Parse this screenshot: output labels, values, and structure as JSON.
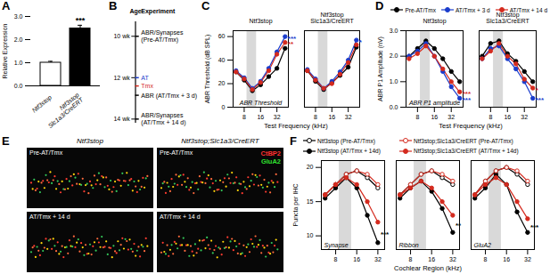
{
  "chart_data": [
    {
      "panel": "A",
      "type": "bar",
      "categories": [
        "Ntf3stop",
        "Ntf3stop\nSlc1a3/CreERT"
      ],
      "values": [
        1.0,
        2.48
      ],
      "errors": [
        0.06,
        0.14
      ],
      "significance": [
        null,
        "***"
      ],
      "colors": [
        "#ffffff",
        "#000000"
      ],
      "ylabel": "Relative Expression",
      "ylim": [
        0,
        3
      ],
      "yticks": [
        0,
        1,
        2,
        3
      ]
    },
    {
      "panel": "C",
      "type": "line",
      "log": "x",
      "marker": "circle",
      "xlabel": "Test Frequency (kHz)",
      "ylabel": "ABR Threshold (dB SPL)",
      "annotation": "ABR Threshold",
      "x": [
        5.66,
        8,
        11.31,
        16,
        22.63,
        32,
        45.25
      ],
      "xlim": [
        5,
        52
      ],
      "xticks": [
        8,
        16,
        32
      ],
      "ylim": [
        0,
        65
      ],
      "yticks": [
        0,
        20,
        40,
        60
      ],
      "shaded_region": [
        9,
        13.5
      ],
      "groups": [
        {
          "name": "Ntf3stop",
          "series": [
            {
              "name": "Pre-AT/Tmx",
              "color": "#000000",
              "values": [
                30,
                23,
                14,
                19,
                26,
                33,
                50
              ]
            },
            {
              "name": "AT/Tmx + 3 d",
              "color": "#1a3ccc",
              "values": [
                31,
                25,
                16,
                22,
                33,
                47,
                60
              ],
              "significance": "***"
            },
            {
              "name": "AT/Tmx + 14 d",
              "color": "#d42a1e",
              "values": [
                30,
                24,
                15,
                21,
                31,
                45,
                55
              ],
              "significance": "**"
            }
          ]
        },
        {
          "name": "Ntf3stop\nSlc1a3/CreERT",
          "series": [
            {
              "name": "Pre-AT/Tmx",
              "color": "#000000",
              "values": [
                31,
                22,
                15,
                21,
                27,
                34,
                51
              ]
            },
            {
              "name": "AT/Tmx + 3 d",
              "color": "#1a3ccc",
              "values": [
                32,
                24,
                16,
                22,
                30,
                40,
                57
              ],
              "significance": "*"
            },
            {
              "name": "AT/Tmx + 14 d",
              "color": "#d42a1e",
              "values": [
                31,
                23,
                16,
                20,
                28,
                38,
                53
              ]
            }
          ]
        }
      ]
    },
    {
      "panel": "D",
      "type": "line",
      "log": "x",
      "marker": "circle",
      "legend": "top",
      "xlabel": "Test Frequency (kHz)",
      "ylabel": "ABR P1 Amplitude (nV)",
      "annotation": "ABR P1 amplitude",
      "x": [
        5.66,
        8,
        11.31,
        16,
        22.63,
        32,
        45.25
      ],
      "xlim": [
        5,
        52
      ],
      "xticks": [
        8,
        16,
        32
      ],
      "ylim": [
        0,
        3
      ],
      "yticks": [
        0,
        1,
        2,
        3
      ],
      "shaded_region": [
        9,
        13.5
      ],
      "groups": [
        {
          "name": "Ntf3stop",
          "series": [
            {
              "name": "Pre-AT/Tmx",
              "color": "#000000",
              "values": [
                2.0,
                2.3,
                2.6,
                2.3,
                1.9,
                1.4,
                1.0
              ]
            },
            {
              "name": "AT/Tmx + 3 d",
              "color": "#1a3ccc",
              "values": [
                2.0,
                2.2,
                2.5,
                2.0,
                1.4,
                0.8,
                0.35
              ],
              "significance": "***"
            },
            {
              "name": "AT/Tmx + 14 d",
              "color": "#d42a1e",
              "values": [
                1.9,
                2.1,
                2.4,
                2.0,
                1.5,
                1.0,
                0.6
              ],
              "significance": "***"
            }
          ]
        },
        {
          "name": "Ntf3stop\nSlc1a3/CreERT",
          "series": [
            {
              "name": "Pre-AT/Tmx",
              "color": "#000000",
              "values": [
                2.0,
                2.5,
                2.6,
                2.1,
                1.8,
                1.4,
                1.0
              ]
            },
            {
              "name": "AT/Tmx + 3 d",
              "color": "#1a3ccc",
              "values": [
                1.9,
                2.3,
                2.4,
                1.9,
                1.5,
                1.0,
                0.35
              ],
              "significance": "***"
            },
            {
              "name": "AT/Tmx + 14 d",
              "color": "#d42a1e",
              "values": [
                1.9,
                2.2,
                2.5,
                2.0,
                1.7,
                1.1,
                0.75
              ],
              "significance": "*"
            }
          ]
        }
      ]
    },
    {
      "panel": "F",
      "type": "line",
      "log": "x",
      "legend": "top",
      "xlabel": "Cochlear Region (kHz)",
      "ylabel": "Puncta per IHC",
      "x": [
        5.66,
        8,
        11.31,
        16,
        22.63,
        32
      ],
      "xlim": [
        5,
        40
      ],
      "xticks": [
        8,
        16,
        32
      ],
      "ylim": [
        8,
        21
      ],
      "yticks": [
        10,
        15,
        20
      ],
      "shaded_region": [
        9,
        13.5
      ],
      "groups": [
        {
          "name": "Synapse",
          "significance": "***",
          "series": [
            {
              "name": "Ntf3stop (Pre-AT/Tmx)",
              "color": "#000000",
              "marker": "open-circle",
              "values": [
                16,
                17.5,
                19,
                19.5,
                18.5,
                17
              ]
            },
            {
              "name": "Ntf3stop (AT/Tmx + 14d)",
              "color": "#000000",
              "marker": "circle",
              "values": [
                15.5,
                17,
                18.5,
                17,
                13,
                9
              ]
            },
            {
              "name": "Ntf3stop;Slc1a3/CreERT (Pre-AT/Tmx)",
              "color": "#d42a1e",
              "marker": "open-circle",
              "values": [
                16,
                17.5,
                19,
                19.5,
                19,
                17.5
              ]
            },
            {
              "name": "Ntf3stop;Slc1a3/CreERT (AT/Tmx + 14d)",
              "color": "#d42a1e",
              "marker": "circle",
              "values": [
                16,
                17.5,
                18.5,
                17.5,
                15,
                12
              ]
            }
          ]
        },
        {
          "name": "Ribbon",
          "significance": "**",
          "series": [
            {
              "name": "Ntf3stop (Pre-AT/Tmx)",
              "color": "#000000",
              "marker": "open-circle",
              "values": [
                16,
                17.5,
                19,
                19.5,
                18.5,
                17.5
              ]
            },
            {
              "name": "Ntf3stop (AT/Tmx + 14d)",
              "color": "#000000",
              "marker": "circle",
              "values": [
                15.5,
                17,
                18,
                16.5,
                14,
                10.5
              ]
            },
            {
              "name": "Ntf3stop;Slc1a3/CreERT (Pre-AT/Tmx)",
              "color": "#d42a1e",
              "marker": "open-circle",
              "values": [
                16,
                17.5,
                19,
                19.5,
                19,
                18
              ]
            },
            {
              "name": "Ntf3stop;Slc1a3/CreERT (AT/Tmx + 14d)",
              "color": "#d42a1e",
              "marker": "circle",
              "values": [
                16,
                17,
                18,
                17,
                15,
                13
              ]
            }
          ]
        },
        {
          "name": "GluA2",
          "significance": "***",
          "series": [
            {
              "name": "Ntf3stop (Pre-AT/Tmx)",
              "color": "#000000",
              "marker": "open-circle",
              "values": [
                16,
                18,
                19.5,
                20,
                19,
                17.5
              ]
            },
            {
              "name": "Ntf3stop (AT/Tmx + 14d)",
              "color": "#000000",
              "marker": "circle",
              "values": [
                15.5,
                17,
                19,
                17.5,
                13.5,
                10.5
              ]
            },
            {
              "name": "Ntf3stop;Slc1a3/CreERT (Pre-AT/Tmx)",
              "color": "#d42a1e",
              "marker": "open-circle",
              "values": [
                16,
                18,
                19.5,
                20,
                19.5,
                18
              ]
            },
            {
              "name": "Ntf3stop;Slc1a3/CreERT (AT/Tmx + 14d)",
              "color": "#d42a1e",
              "marker": "circle",
              "values": [
                16,
                17.5,
                18.5,
                17.5,
                15,
                12.5
              ]
            }
          ]
        }
      ]
    }
  ],
  "timeline": {
    "panel": "B",
    "axis_label": "Age",
    "header": "Experiment",
    "range": [
      9.3,
      14.2
    ],
    "ticks": [
      {
        "value": 10,
        "label": "10 wk"
      },
      {
        "value": 12,
        "label": "12 wk"
      },
      {
        "value": 14,
        "label": "14 wk"
      }
    ],
    "events": [
      {
        "at": 10,
        "text": "ABR/Synapses\n(Pre-AT/Tmx)"
      },
      {
        "at": 12,
        "text": "AT",
        "color": "#1a3ccc"
      },
      {
        "at": 12.4,
        "text": "Tmx",
        "color": "#d42a1e"
      },
      {
        "at": 12.85,
        "text": "ABR (AT/Tmx + 3 d)"
      },
      {
        "at": 14,
        "text": "ABR/Synapses\n(AT/Tmx + 14 d)"
      }
    ]
  },
  "micrographs": {
    "panel": "E",
    "columns": [
      "Ntf3stop",
      "Ntf3stop;Slc1a3/CreERT"
    ],
    "rows": [
      "Pre-AT/Tmx",
      "AT/Tmx + 14 d"
    ],
    "stains": [
      {
        "name": "CtBP2",
        "color": "#ff3030"
      },
      {
        "name": "GluA2",
        "color": "#30e030"
      }
    ]
  }
}
